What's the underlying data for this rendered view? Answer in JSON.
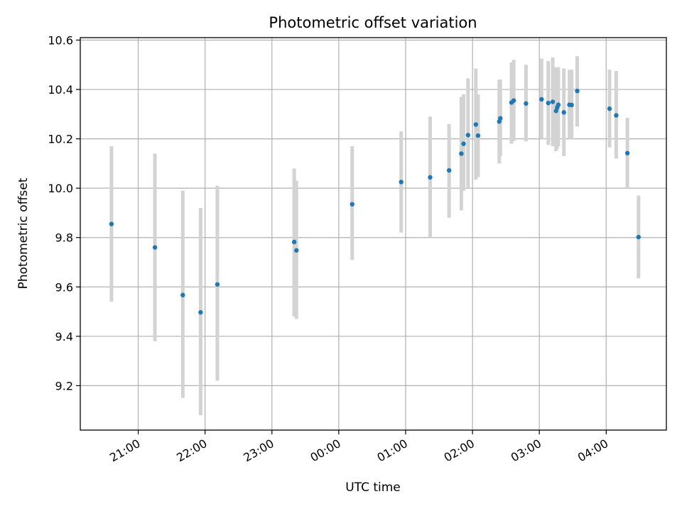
{
  "chart_data": {
    "type": "scatter",
    "title": "Photometric offset variation",
    "xlabel": "UTC time",
    "ylabel": "Photometric offset",
    "x_is_time": true,
    "xlim": [
      "20:08",
      "04:54"
    ],
    "ylim": [
      9.02,
      10.61
    ],
    "xticks": [
      "21:00",
      "22:00",
      "23:00",
      "00:00",
      "01:00",
      "02:00",
      "03:00",
      "04:00"
    ],
    "yticks": [
      9.2,
      9.4,
      9.6,
      9.8,
      10.0,
      10.2,
      10.4,
      10.6
    ],
    "grid": true,
    "points": [
      {
        "x": "20:36",
        "y": 9.855,
        "err_low": 9.54,
        "err_high": 10.17
      },
      {
        "x": "21:15",
        "y": 9.76,
        "err_low": 9.38,
        "err_high": 10.14
      },
      {
        "x": "21:40",
        "y": 9.567,
        "err_low": 9.15,
        "err_high": 9.99
      },
      {
        "x": "21:56",
        "y": 9.497,
        "err_low": 9.08,
        "err_high": 9.92
      },
      {
        "x": "22:11",
        "y": 9.61,
        "err_low": 9.22,
        "err_high": 10.01
      },
      {
        "x": "23:20",
        "y": 9.782,
        "err_low": 9.48,
        "err_high": 10.08
      },
      {
        "x": "23:22",
        "y": 9.748,
        "err_low": 9.47,
        "err_high": 10.03
      },
      {
        "x": "00:12",
        "y": 9.935,
        "err_low": 9.71,
        "err_high": 10.17
      },
      {
        "x": "00:56",
        "y": 10.025,
        "err_low": 9.82,
        "err_high": 10.23
      },
      {
        "x": "01:22",
        "y": 10.044,
        "err_low": 9.8,
        "err_high": 10.29
      },
      {
        "x": "01:39",
        "y": 10.072,
        "err_low": 9.88,
        "err_high": 10.26
      },
      {
        "x": "01:50",
        "y": 10.14,
        "err_low": 9.91,
        "err_high": 10.37
      },
      {
        "x": "01:52",
        "y": 10.18,
        "err_low": 9.99,
        "err_high": 10.38
      },
      {
        "x": "01:56",
        "y": 10.215,
        "err_low": 10.0,
        "err_high": 10.445
      },
      {
        "x": "02:03",
        "y": 10.258,
        "err_low": 10.035,
        "err_high": 10.485
      },
      {
        "x": "02:05",
        "y": 10.213,
        "err_low": 10.045,
        "err_high": 10.38
      },
      {
        "x": "02:24",
        "y": 10.27,
        "err_low": 10.1,
        "err_high": 10.44
      },
      {
        "x": "02:25",
        "y": 10.283,
        "err_low": 10.13,
        "err_high": 10.44
      },
      {
        "x": "02:35",
        "y": 10.347,
        "err_low": 10.18,
        "err_high": 10.51
      },
      {
        "x": "02:37",
        "y": 10.355,
        "err_low": 10.19,
        "err_high": 10.52
      },
      {
        "x": "02:48",
        "y": 10.343,
        "err_low": 10.19,
        "err_high": 10.5
      },
      {
        "x": "03:02",
        "y": 10.36,
        "err_low": 10.2,
        "err_high": 10.525
      },
      {
        "x": "03:08",
        "y": 10.345,
        "err_low": 10.175,
        "err_high": 10.515
      },
      {
        "x": "03:12",
        "y": 10.35,
        "err_low": 10.17,
        "err_high": 10.53
      },
      {
        "x": "03:15",
        "y": 10.313,
        "err_low": 10.15,
        "err_high": 10.49
      },
      {
        "x": "03:16",
        "y": 10.327,
        "err_low": 10.16,
        "err_high": 10.49
      },
      {
        "x": "03:17",
        "y": 10.338,
        "err_low": 10.17,
        "err_high": 10.49
      },
      {
        "x": "03:22",
        "y": 10.307,
        "err_low": 10.13,
        "err_high": 10.485
      },
      {
        "x": "03:27",
        "y": 10.338,
        "err_low": 10.2,
        "err_high": 10.48
      },
      {
        "x": "03:29",
        "y": 10.337,
        "err_low": 10.2,
        "err_high": 10.48
      },
      {
        "x": "03:34",
        "y": 10.394,
        "err_low": 10.25,
        "err_high": 10.535
      },
      {
        "x": "04:03",
        "y": 10.322,
        "err_low": 10.165,
        "err_high": 10.48
      },
      {
        "x": "04:09",
        "y": 10.295,
        "err_low": 10.12,
        "err_high": 10.475
      },
      {
        "x": "04:19",
        "y": 10.142,
        "err_low": 10.0,
        "err_high": 10.285
      },
      {
        "x": "04:29",
        "y": 9.802,
        "err_low": 9.635,
        "err_high": 9.97
      }
    ],
    "marker_color": "#1f77b4",
    "errorbar_color": "#d3d3d3",
    "grid_color": "#b0b0b0"
  }
}
